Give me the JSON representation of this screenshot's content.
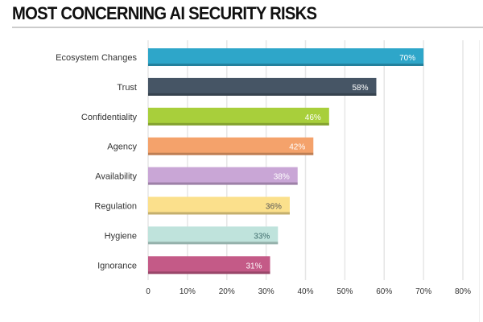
{
  "chart_data": {
    "type": "bar",
    "orientation": "horizontal",
    "title": "MOST CONCERNING AI SECURITY RISKS",
    "categories": [
      "Ecosystem Changes",
      "Trust",
      "Confidentiality",
      "Agency",
      "Availability",
      "Regulation",
      "Hygiene",
      "Ignorance"
    ],
    "values": [
      70,
      58,
      46,
      42,
      38,
      36,
      33,
      31
    ],
    "data_labels": [
      "70%",
      "58%",
      "46%",
      "42%",
      "38%",
      "36%",
      "33%",
      "31%"
    ],
    "colors": [
      "#2ea6c9",
      "#465565",
      "#a8cf3b",
      "#f4a26b",
      "#c9a6d6",
      "#fbe08c",
      "#bfe3dc",
      "#c45a87"
    ],
    "label_colors": [
      "#ffffff",
      "#ffffff",
      "#ffffff",
      "#ffffff",
      "#ffffff",
      "#555555",
      "#3d6b6b",
      "#ffffff"
    ],
    "xlim": [
      0,
      80
    ],
    "x_ticks": [
      "0",
      "10%",
      "20%",
      "30%",
      "40%",
      "50%",
      "60%",
      "70%",
      "80%"
    ],
    "grid": true,
    "xlabel": "",
    "ylabel": ""
  }
}
